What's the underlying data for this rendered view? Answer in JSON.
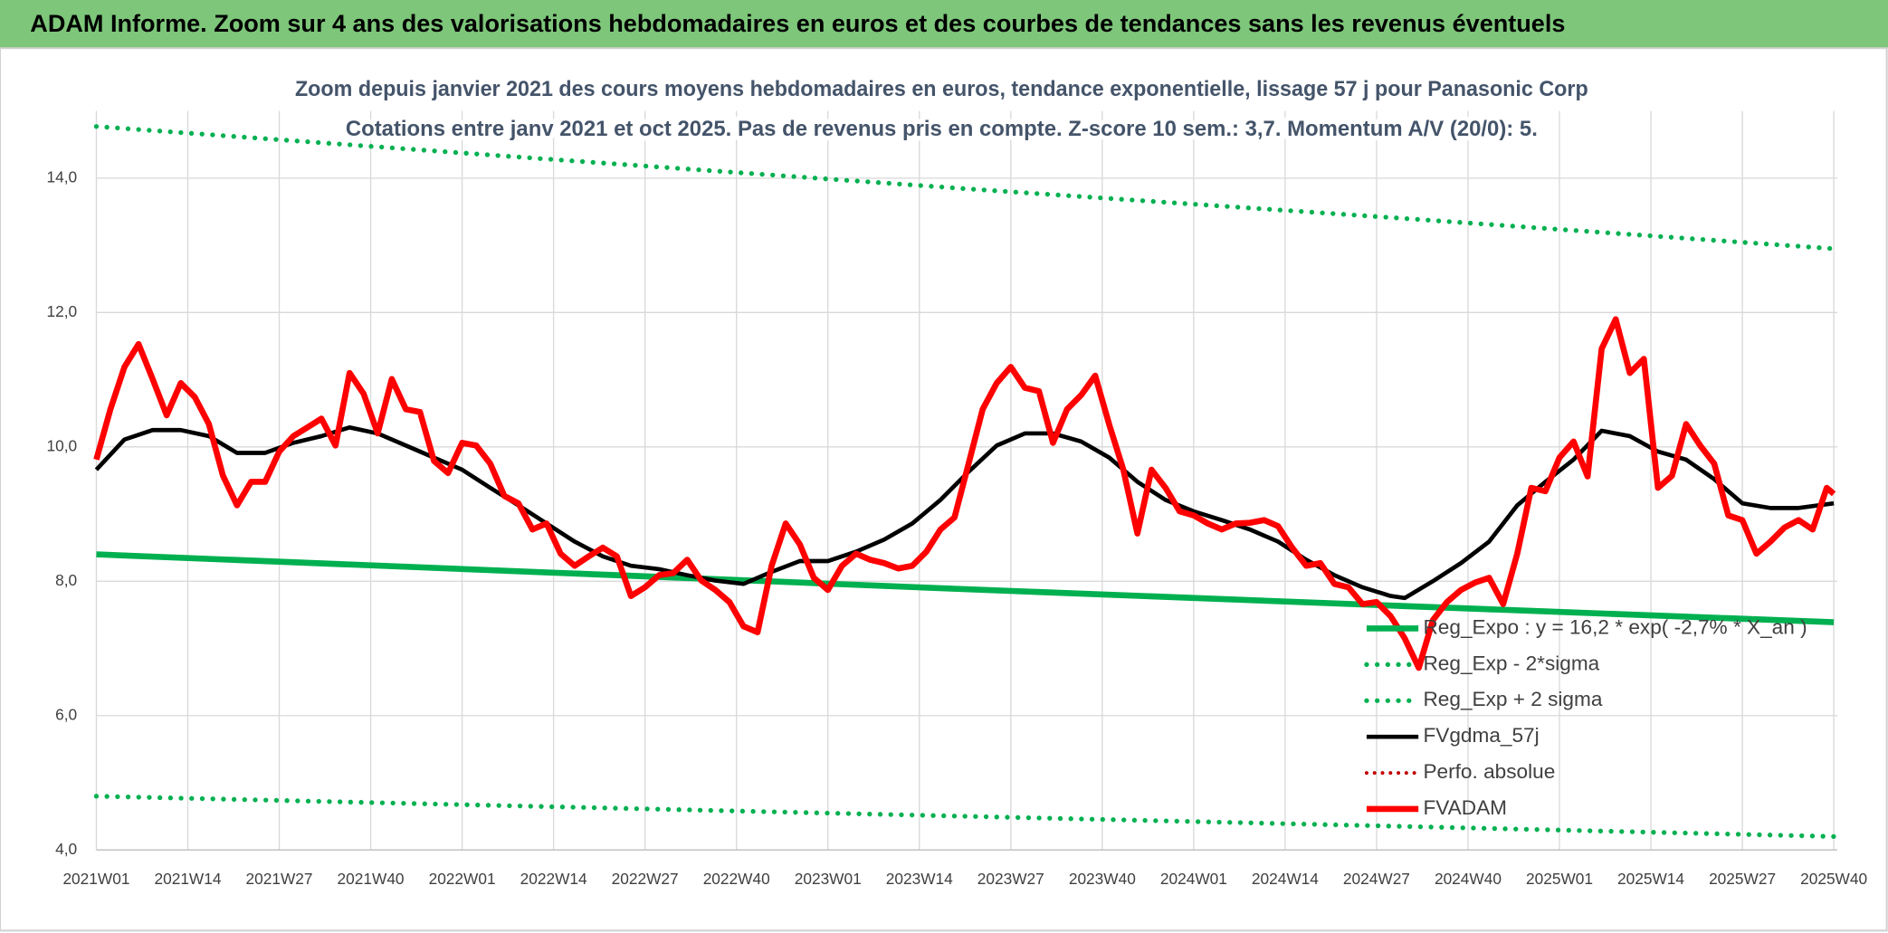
{
  "header": {
    "title": "ADAM Informe. Zoom sur 4 ans des valorisations hebdomadaires en euros et des courbes de tendances sans les revenus éventuels"
  },
  "chart_data": {
    "type": "line",
    "title": "Zoom depuis janvier 2021 des cours moyens hebdomadaires en euros, tendance exponentielle, lissage 57 j pour Panasonic Corp",
    "subtitle": "Cotations entre janv 2021 et oct 2025. Pas de revenus pris en compte. Z-score 10 sem.: 3,7. Momentum A/V (20/0): 5.",
    "xlim": [
      0,
      247
    ],
    "xticks": [
      {
        "value": 0,
        "label": "2021W01"
      },
      {
        "value": 13,
        "label": "2021W14"
      },
      {
        "value": 26,
        "label": "2021W27"
      },
      {
        "value": 39,
        "label": "2021W40"
      },
      {
        "value": 52,
        "label": "2022W01"
      },
      {
        "value": 65,
        "label": "2022W14"
      },
      {
        "value": 78,
        "label": "2022W27"
      },
      {
        "value": 91,
        "label": "2022W40"
      },
      {
        "value": 104,
        "label": "2023W01"
      },
      {
        "value": 117,
        "label": "2023W14"
      },
      {
        "value": 130,
        "label": "2023W27"
      },
      {
        "value": 143,
        "label": "2023W40"
      },
      {
        "value": 156,
        "label": "2024W01"
      },
      {
        "value": 169,
        "label": "2024W14"
      },
      {
        "value": 182,
        "label": "2024W27"
      },
      {
        "value": 195,
        "label": "2024W40"
      },
      {
        "value": 208,
        "label": "2025W01"
      },
      {
        "value": 221,
        "label": "2025W14"
      },
      {
        "value": 234,
        "label": "2025W27"
      },
      {
        "value": 247,
        "label": "2025W40"
      }
    ],
    "ylim": [
      4,
      15
    ],
    "yticks": [
      {
        "value": 4,
        "label": "4,0"
      },
      {
        "value": 6,
        "label": "6,0"
      },
      {
        "value": 8,
        "label": "8,0"
      },
      {
        "value": 10,
        "label": "10,0"
      },
      {
        "value": 12,
        "label": "12,0"
      },
      {
        "value": 14,
        "label": "14,0"
      }
    ],
    "grid": true,
    "legend": "lower-right",
    "series": [
      {
        "name": "Reg_Expo : y = 16,2 * exp( -2,7% * X_an )",
        "color": "#00b050",
        "style": "solid",
        "width": 5,
        "x": [
          0,
          62,
          124,
          186,
          247
        ],
        "values": [
          8.4,
          8.14,
          7.88,
          7.63,
          7.39
        ]
      },
      {
        "name": "Reg_Exp - 2*sigma",
        "color": "#00b050",
        "style": "dotted",
        "width": 4,
        "x": [
          0,
          62,
          124,
          186,
          247
        ],
        "values": [
          4.8,
          4.65,
          4.5,
          4.35,
          4.2
        ]
      },
      {
        "name": "Reg_Exp + 2 sigma",
        "color": "#00b050",
        "style": "dotted",
        "width": 4,
        "x": [
          0,
          62,
          124,
          186,
          247
        ],
        "values": [
          14.77,
          14.3,
          13.84,
          13.4,
          12.95
        ]
      },
      {
        "name": "FVgdma_57j",
        "color": "#000000",
        "style": "solid",
        "width": 3.5,
        "x": [
          0,
          4,
          8,
          12,
          16,
          20,
          24,
          28,
          32,
          36,
          40,
          44,
          48,
          52,
          56,
          60,
          64,
          68,
          72,
          76,
          80,
          84,
          88,
          92,
          96,
          100,
          104,
          108,
          112,
          116,
          120,
          124,
          128,
          132,
          136,
          140,
          144,
          148,
          152,
          156,
          160,
          164,
          168,
          172,
          176,
          180,
          184,
          186,
          190,
          194,
          198,
          202,
          206,
          210,
          214,
          218,
          222,
          226,
          230,
          234,
          238,
          242,
          247
        ],
        "values": [
          9.66,
          10.11,
          10.25,
          10.25,
          10.16,
          9.91,
          9.91,
          10.06,
          10.16,
          10.29,
          10.2,
          10.02,
          9.84,
          9.66,
          9.39,
          9.13,
          8.86,
          8.59,
          8.37,
          8.23,
          8.18,
          8.09,
          8.01,
          7.96,
          8.14,
          8.3,
          8.3,
          8.44,
          8.62,
          8.86,
          9.21,
          9.63,
          10.02,
          10.2,
          10.2,
          10.08,
          9.84,
          9.48,
          9.21,
          9.04,
          8.91,
          8.77,
          8.59,
          8.32,
          8.09,
          7.91,
          7.78,
          7.75,
          8.0,
          8.27,
          8.59,
          9.13,
          9.48,
          9.81,
          10.24,
          10.16,
          9.93,
          9.81,
          9.52,
          9.16,
          9.09,
          9.09,
          9.16
        ]
      },
      {
        "name": "Perfo. absolue",
        "color": "#c00000",
        "style": "dotted",
        "width": 3,
        "x": [],
        "values": []
      },
      {
        "name": "FVADAM",
        "color": "#ff0000",
        "style": "solid",
        "width": 5,
        "x": [
          0,
          2,
          4,
          6,
          8,
          10,
          12,
          14,
          16,
          18,
          20,
          22,
          24,
          26,
          28,
          30,
          32,
          34,
          36,
          38,
          40,
          42,
          44,
          46,
          48,
          50,
          52,
          54,
          56,
          58,
          60,
          62,
          64,
          66,
          68,
          70,
          72,
          74,
          76,
          78,
          80,
          82,
          84,
          86,
          88,
          90,
          92,
          94,
          96,
          98,
          100,
          102,
          104,
          106,
          108,
          110,
          112,
          114,
          116,
          118,
          120,
          122,
          124,
          126,
          128,
          130,
          132,
          134,
          136,
          138,
          140,
          142,
          144,
          146,
          148,
          150,
          152,
          154,
          156,
          158,
          160,
          162,
          164,
          166,
          168,
          170,
          172,
          174,
          176,
          178,
          180,
          182,
          184,
          186,
          188,
          190,
          192,
          194,
          196,
          198,
          200,
          202,
          204,
          206,
          208,
          210,
          212,
          214,
          216,
          218,
          220,
          222,
          224,
          226,
          228,
          230,
          232,
          234,
          236,
          238,
          240,
          242,
          244,
          246,
          247
        ],
        "values": [
          9.81,
          10.56,
          11.19,
          11.53,
          11.01,
          10.47,
          10.95,
          10.74,
          10.34,
          9.57,
          9.13,
          9.48,
          9.48,
          9.93,
          10.16,
          10.29,
          10.42,
          10.02,
          11.1,
          10.79,
          10.2,
          11.01,
          10.56,
          10.52,
          9.79,
          9.61,
          10.06,
          10.02,
          9.75,
          9.27,
          9.16,
          8.77,
          8.86,
          8.41,
          8.23,
          8.37,
          8.5,
          8.37,
          7.78,
          7.91,
          8.09,
          8.12,
          8.32,
          8.01,
          7.87,
          7.69,
          7.33,
          7.24,
          8.23,
          8.86,
          8.55,
          8.05,
          7.87,
          8.23,
          8.41,
          8.32,
          8.27,
          8.19,
          8.23,
          8.44,
          8.77,
          8.95,
          9.75,
          10.56,
          10.95,
          11.19,
          10.88,
          10.83,
          10.06,
          10.56,
          10.77,
          11.06,
          10.33,
          9.66,
          8.71,
          9.66,
          9.39,
          9.04,
          8.98,
          8.86,
          8.77,
          8.86,
          8.87,
          8.91,
          8.82,
          8.5,
          8.23,
          8.27,
          7.96,
          7.91,
          7.66,
          7.69,
          7.48,
          7.15,
          6.71,
          7.42,
          7.69,
          7.87,
          7.98,
          8.05,
          7.66,
          8.41,
          9.39,
          9.34,
          9.84,
          10.08,
          9.56,
          11.46,
          11.9,
          11.1,
          11.31,
          9.39,
          9.57,
          10.34,
          10.02,
          9.75,
          8.98,
          8.91,
          8.41,
          8.59,
          8.8,
          8.91,
          8.77,
          9.39,
          9.3
        ]
      }
    ]
  }
}
